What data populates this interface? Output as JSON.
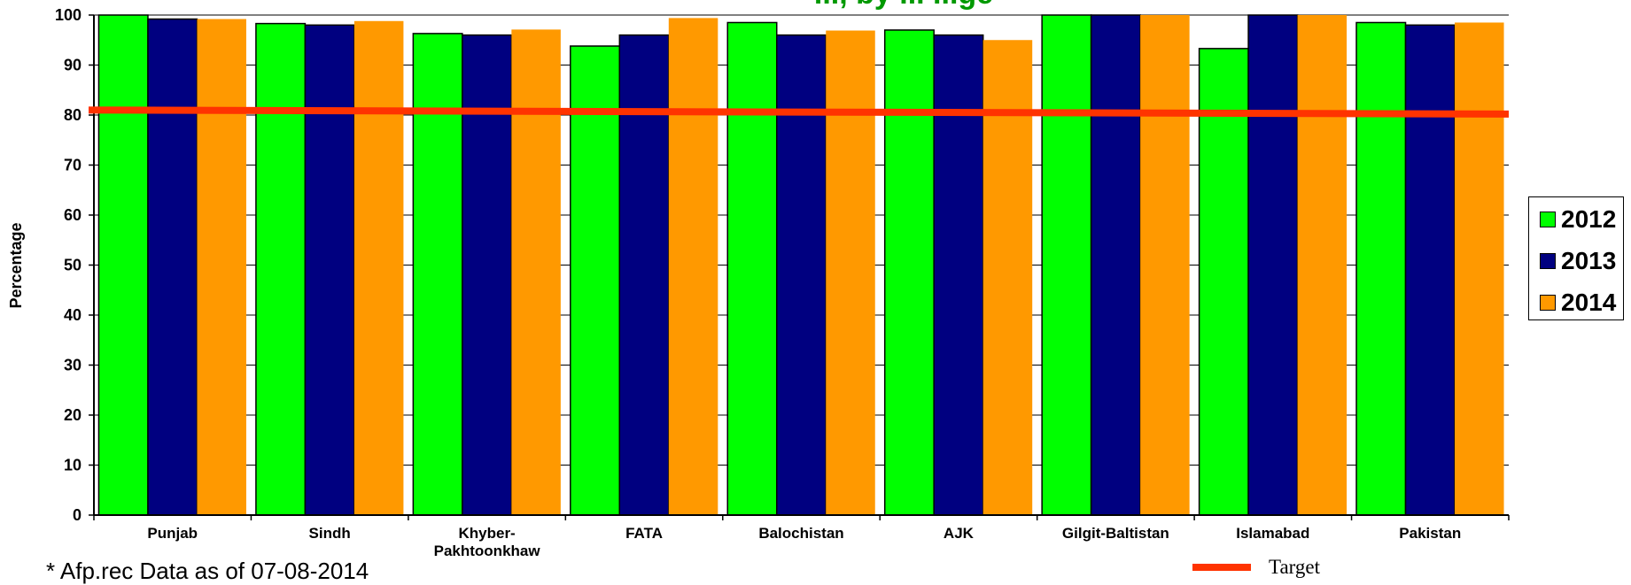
{
  "chart_data": {
    "type": "bar",
    "title": "..., by ... ...ge",
    "ylabel": "Percentage",
    "xlabel": "",
    "ylim": [
      0,
      100
    ],
    "yticks": [
      0,
      10,
      20,
      30,
      40,
      50,
      60,
      70,
      80,
      90,
      100
    ],
    "grid": "horizontal",
    "categories": [
      "Punjab",
      "Sindh",
      "Khyber-Pakhtoonkhaw",
      "FATA",
      "Balochistan",
      "AJK",
      "Gilgit-Baltistan",
      "Islamabad",
      "Pakistan"
    ],
    "category_lines": [
      [
        "Punjab"
      ],
      [
        "Sindh"
      ],
      [
        "Khyber-",
        "Pakhtoonkhaw"
      ],
      [
        "FATA"
      ],
      [
        "Balochistan"
      ],
      [
        "AJK"
      ],
      [
        "Gilgit-Baltistan"
      ],
      [
        "Islamabad"
      ],
      [
        "Pakistan"
      ]
    ],
    "series": [
      {
        "name": "2012",
        "color": "#00FF00",
        "values": [
          100,
          98.3,
          96.3,
          93.8,
          98.5,
          97.0,
          100,
          93.3,
          98.5
        ]
      },
      {
        "name": "2013",
        "color": "#000080",
        "values": [
          99.2,
          98.0,
          96.0,
          96.0,
          96.0,
          96.0,
          100,
          100,
          98.0
        ]
      },
      {
        "name": "2014",
        "color": "#FF9900",
        "values": [
          99.2,
          98.8,
          97.1,
          99.4,
          96.9,
          95.0,
          100,
          100,
          98.5
        ]
      }
    ],
    "target": {
      "label": "Target",
      "color": "#FF3300",
      "value_start": 81.0,
      "value_end": 80.2
    },
    "legend_position": "right",
    "footnote": "* Afp.rec Data as of 07-08-2014"
  },
  "colors": {
    "title": "#009900",
    "grid": "#000000"
  }
}
